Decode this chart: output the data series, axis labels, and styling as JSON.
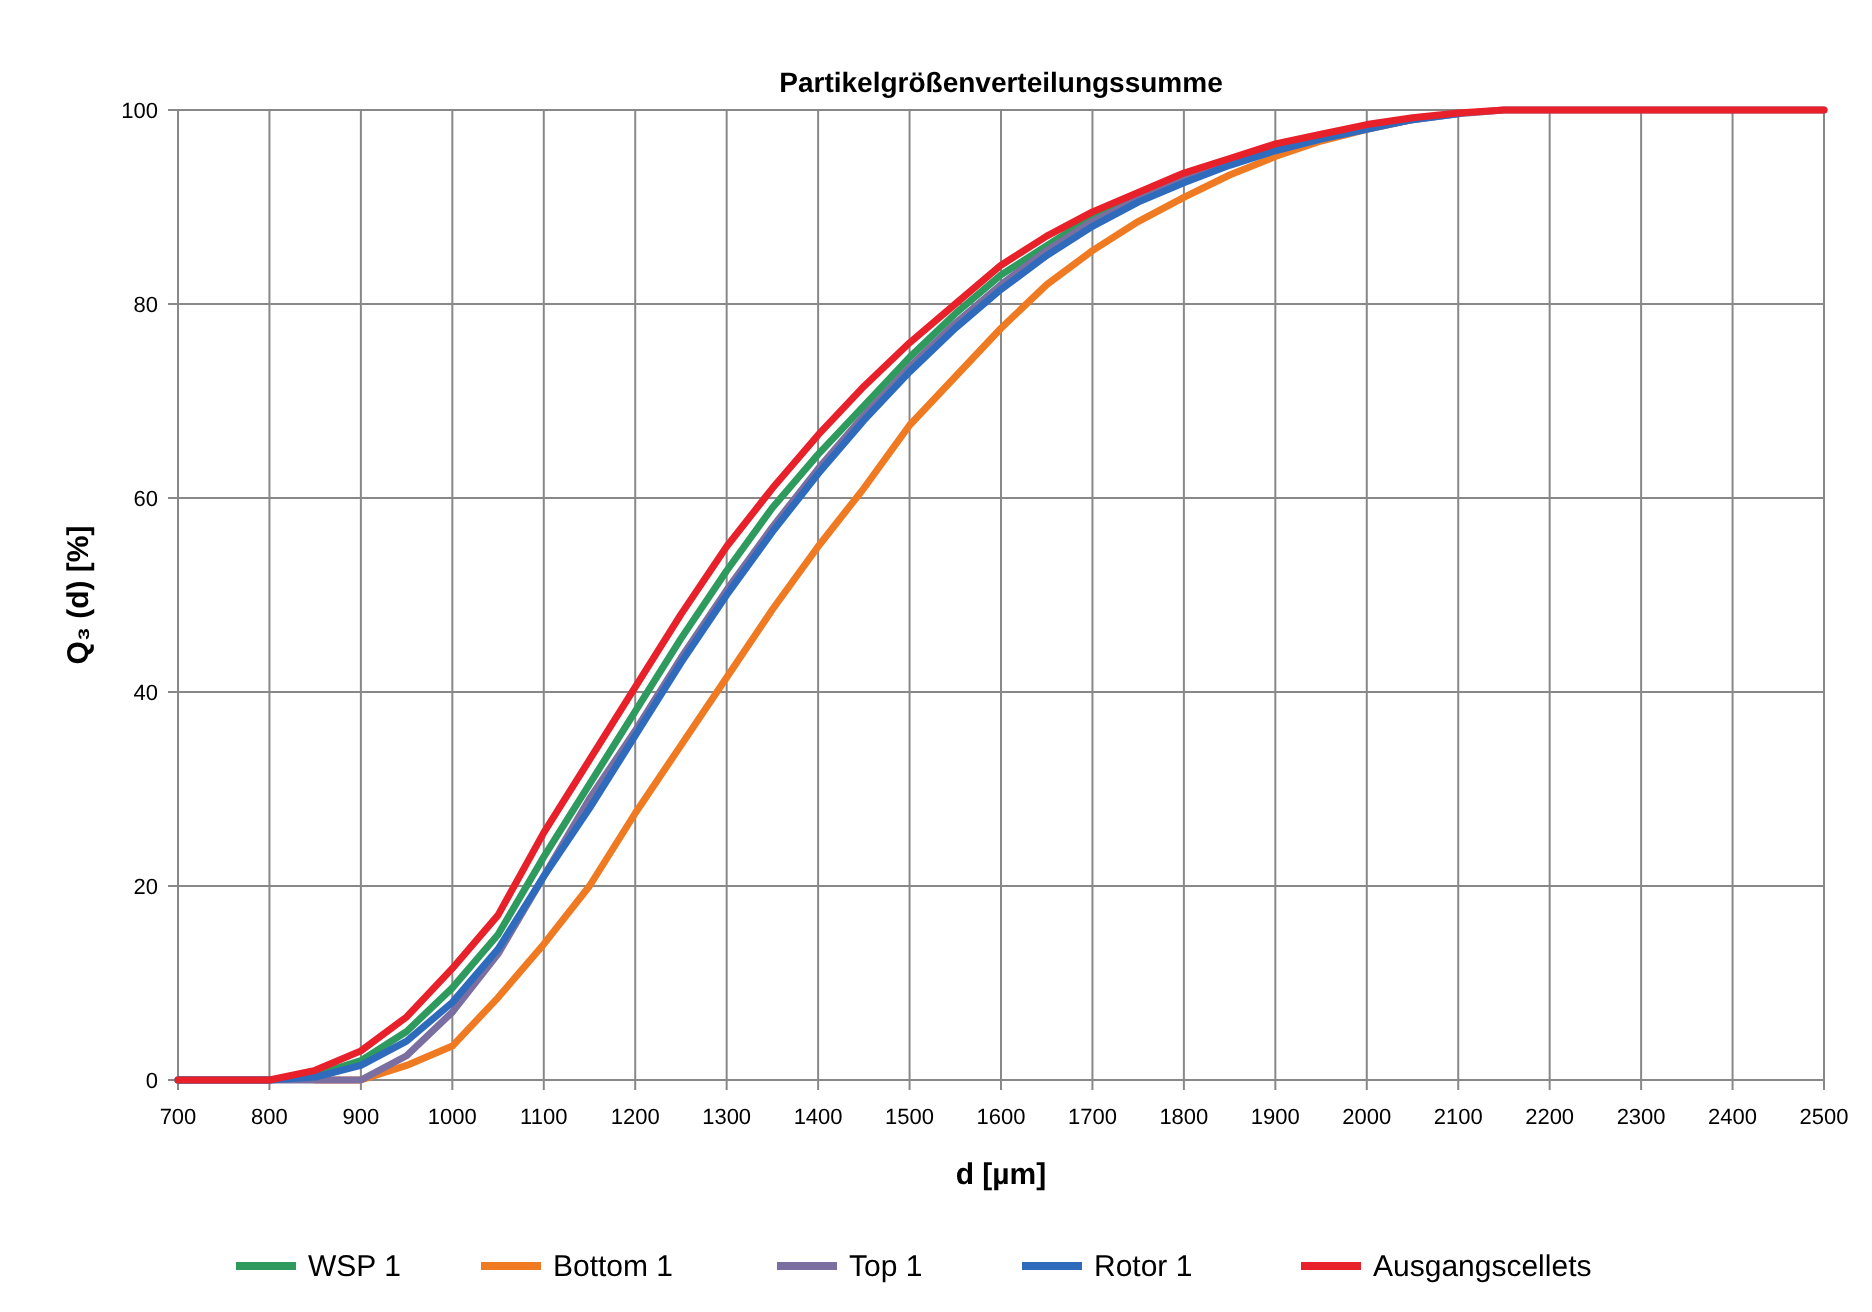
{
  "chart_data": {
    "type": "line",
    "title": "Partikelgrößenverteilungssumme",
    "xlabel": "d [µm]",
    "ylabel": "Q₃ (d) [%]",
    "x": [
      700,
      800,
      850,
      900,
      950,
      1000,
      1050,
      1100,
      1150,
      1200,
      1250,
      1300,
      1350,
      1400,
      1450,
      1500,
      1550,
      1600,
      1650,
      1700,
      1750,
      1800,
      1850,
      1900,
      1950,
      2000,
      2050,
      2100,
      2150,
      2200,
      2500
    ],
    "series": [
      {
        "name": "WSP 1",
        "color": "#2e9a5e",
        "values": [
          0,
          0,
          0.5,
          2,
          5,
          9.5,
          15,
          23,
          30.5,
          38,
          45.5,
          52.5,
          59,
          64.5,
          69.5,
          74.5,
          79,
          83,
          86,
          89,
          91.2,
          93.2,
          null,
          null,
          null,
          null,
          null,
          null,
          null,
          null,
          null
        ]
      },
      {
        "name": "Bottom 1",
        "color": "#f07a22",
        "values": [
          null,
          null,
          0,
          0,
          1.5,
          3.5,
          8.5,
          14,
          20,
          27.5,
          34.5,
          41.5,
          48.5,
          55,
          61,
          67.5,
          72.5,
          77.5,
          82,
          85.5,
          88.5,
          91,
          93.3,
          95.2,
          96.8,
          98,
          99,
          null,
          null,
          null,
          null
        ]
      },
      {
        "name": "Top 1",
        "color": "#7a6fa0",
        "values": [
          0,
          0,
          0,
          0,
          2.5,
          7,
          13,
          21,
          29,
          36,
          43.5,
          50.5,
          57,
          63,
          68.5,
          73.5,
          78,
          82,
          85.5,
          88.5,
          90.8,
          92.8,
          94.5,
          96,
          97.2,
          98.2,
          99,
          99.6,
          100,
          100,
          100
        ]
      },
      {
        "name": "Rotor 1",
        "color": "#2f6bbd",
        "values": [
          0,
          0,
          0.3,
          1.5,
          4,
          8,
          13.5,
          21,
          28,
          35.5,
          43,
          50,
          56.5,
          62.5,
          68,
          73,
          77.5,
          81.5,
          85,
          88,
          90.5,
          92.5,
          94.3,
          95.8,
          97,
          98,
          99,
          99.6,
          null,
          null,
          null
        ]
      },
      {
        "name": "Ausgangscellets",
        "color": "#e8202a",
        "values": [
          0,
          0,
          1,
          3,
          6.5,
          11.5,
          17,
          25.5,
          33,
          40.5,
          48,
          55,
          61,
          66.5,
          71.5,
          76,
          80,
          84,
          87,
          89.5,
          91.5,
          93.5,
          95,
          96.5,
          97.5,
          98.5,
          99.2,
          99.7,
          100,
          100,
          100
        ]
      }
    ],
    "xlim": [
      700,
      2500
    ],
    "xticks": [
      700,
      800,
      900,
      1000,
      1100,
      1200,
      1300,
      1400,
      1500,
      1600,
      1700,
      1800,
      1900,
      2000,
      2100,
      2200,
      2300,
      2400,
      2500
    ],
    "ylim": [
      0,
      100
    ],
    "yticks": [
      0,
      20,
      40,
      60,
      80,
      100
    ],
    "grid": true,
    "legend": "bottom",
    "line_style": "solid",
    "marker": "none"
  }
}
